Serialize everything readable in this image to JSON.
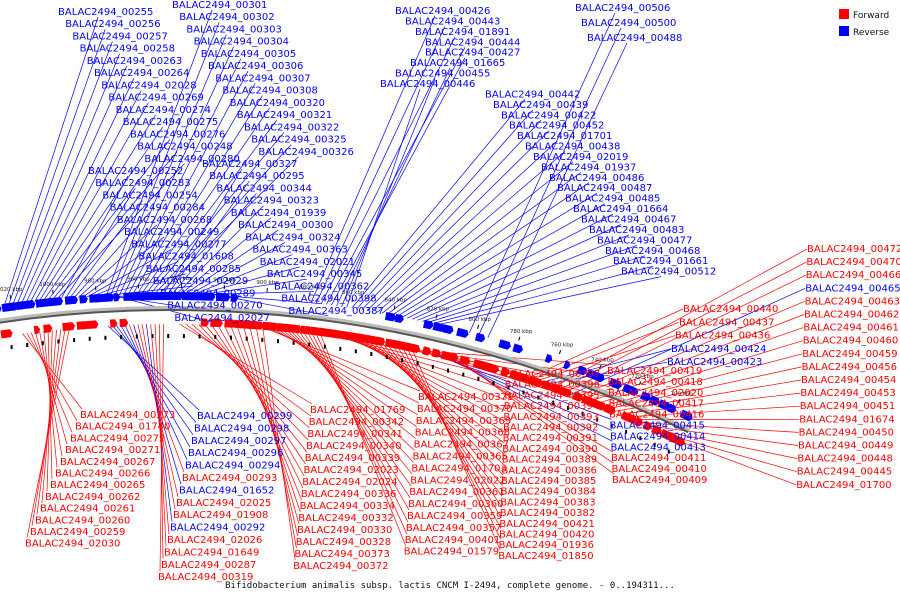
{
  "caption": "Bifidobacterium animalis subsp. lactis CNCM I-2494, complete genome. - 0..194311...",
  "legend": {
    "forward": "Forward",
    "reverse": "Reverse",
    "forward_color": "#ff0000",
    "reverse_color": "#0000ff"
  },
  "ticks": [
    "1020 kbp",
    "1000 kbp",
    "980 kbp",
    "960 kbp",
    "940 kbp",
    "920 kbp",
    "900 kbp",
    "880 kbp",
    "860 kbp",
    "840 kbp",
    "820 kbp",
    "800 kbp",
    "780 kbp",
    "760 kbp",
    "740 kbp",
    "720 kbp",
    "700 kbp"
  ],
  "top_labels": [
    {
      "t": "BALAC2494_00255",
      "c": "b"
    },
    {
      "t": "BALAC2494_00256",
      "c": "b"
    },
    {
      "t": "BALAC2494_00257",
      "c": "b"
    },
    {
      "t": "BALAC2494_00258",
      "c": "b"
    },
    {
      "t": "BALAC2494_00263",
      "c": "b"
    },
    {
      "t": "BALAC2494_00264",
      "c": "b"
    },
    {
      "t": "BALAC2494_02028",
      "c": "b"
    },
    {
      "t": "BALAC2494_00269",
      "c": "b"
    },
    {
      "t": "BALAC2494_00274",
      "c": "b"
    },
    {
      "t": "BALAC2494_00275",
      "c": "b"
    },
    {
      "t": "BALAC2494_00276",
      "c": "b"
    },
    {
      "t": "BALAC2494_00248",
      "c": "b"
    },
    {
      "t": "BALAC2494_00280",
      "c": "b"
    },
    {
      "t": "BALAC2494_00252",
      "c": "b"
    },
    {
      "t": "BALAC2494_00283",
      "c": "b"
    },
    {
      "t": "BALAC2494_00254",
      "c": "b"
    },
    {
      "t": "BALAC2494_00284",
      "c": "b"
    },
    {
      "t": "BALAC2494_00268",
      "c": "b"
    },
    {
      "t": "BALAC2494_00249",
      "c": "b"
    },
    {
      "t": "BALAC2494_00277",
      "c": "b"
    },
    {
      "t": "BALAC2494_01608",
      "c": "b"
    },
    {
      "t": "BALAC2494_00285",
      "c": "b"
    },
    {
      "t": "BALAC2494_02029",
      "c": "b"
    },
    {
      "t": "BALAC2494_00289",
      "c": "b"
    },
    {
      "t": "BALAC2494_00270",
      "c": "b"
    },
    {
      "t": "BALAC2494_02027",
      "c": "b"
    },
    {
      "t": "BALAC2494_00301",
      "c": "b"
    },
    {
      "t": "BALAC2494_00302",
      "c": "b"
    },
    {
      "t": "BALAC2494_00303",
      "c": "b"
    },
    {
      "t": "BALAC2494_00304",
      "c": "b"
    },
    {
      "t": "BALAC2494_00305",
      "c": "b"
    },
    {
      "t": "BALAC2494_00306",
      "c": "b"
    },
    {
      "t": "BALAC2494_00307",
      "c": "b"
    },
    {
      "t": "BALAC2494_00308",
      "c": "b"
    },
    {
      "t": "BALAC2494_00320",
      "c": "b"
    },
    {
      "t": "BALAC2494_00321",
      "c": "b"
    },
    {
      "t": "BALAC2494_00322",
      "c": "b"
    },
    {
      "t": "BALAC2494_00325",
      "c": "b"
    },
    {
      "t": "BALAC2494_00326",
      "c": "b"
    },
    {
      "t": "BALAC2494_00327",
      "c": "b"
    },
    {
      "t": "BALAC2494_00295",
      "c": "b"
    },
    {
      "t": "BALAC2494_00344",
      "c": "b"
    },
    {
      "t": "BALAC2494_00323",
      "c": "b"
    },
    {
      "t": "BALAC2494_01939",
      "c": "b"
    },
    {
      "t": "BALAC2494_00300",
      "c": "b"
    },
    {
      "t": "BALAC2494_00324",
      "c": "b"
    },
    {
      "t": "BALAC2494_00363",
      "c": "b"
    },
    {
      "t": "BALAC2494_02021",
      "c": "b"
    },
    {
      "t": "BALAC2494_00345",
      "c": "b"
    },
    {
      "t": "BALAC2494_00362",
      "c": "b"
    },
    {
      "t": "BALAC2494_00398",
      "c": "b"
    },
    {
      "t": "BALAC2494_00387",
      "c": "b"
    },
    {
      "t": "BALAC2494_00426",
      "c": "b"
    },
    {
      "t": "BALAC2494_00443",
      "c": "b"
    },
    {
      "t": "BALAC2494_01891",
      "c": "b"
    },
    {
      "t": "BALAC2494_00444",
      "c": "b"
    },
    {
      "t": "BALAC2494_00427",
      "c": "b"
    },
    {
      "t": "BALAC2494_01665",
      "c": "b"
    },
    {
      "t": "BALAC2494_00455",
      "c": "b"
    },
    {
      "t": "BALAC2494_00446",
      "c": "b"
    },
    {
      "t": "BALAC2494_00442",
      "c": "b"
    },
    {
      "t": "BALAC2494_00439",
      "c": "b"
    },
    {
      "t": "BALAC2494_00422",
      "c": "b"
    },
    {
      "t": "BALAC2494_00452",
      "c": "b"
    },
    {
      "t": "BALAC2494_01701",
      "c": "b"
    },
    {
      "t": "BALAC2494_00438",
      "c": "b"
    },
    {
      "t": "BALAC2494_02019",
      "c": "b"
    },
    {
      "t": "BALAC2494_01937",
      "c": "b"
    },
    {
      "t": "BALAC2494_00486",
      "c": "b"
    },
    {
      "t": "BALAC2494_00487",
      "c": "b"
    },
    {
      "t": "BALAC2494_00485",
      "c": "b"
    },
    {
      "t": "BALAC2494_01664",
      "c": "b"
    },
    {
      "t": "BALAC2494_00467",
      "c": "b"
    },
    {
      "t": "BALAC2494_00483",
      "c": "b"
    },
    {
      "t": "BALAC2494_00477",
      "c": "b"
    },
    {
      "t": "BALAC2494_00468",
      "c": "b"
    },
    {
      "t": "BALAC2494_01661",
      "c": "b"
    },
    {
      "t": "BALAC2494_00512",
      "c": "b"
    },
    {
      "t": "BALAC2494_00506",
      "c": "b"
    },
    {
      "t": "BALAC2494_00500",
      "c": "b"
    },
    {
      "t": "BALAC2494_00488",
      "c": "b"
    }
  ],
  "right_labels": [
    {
      "t": "BALAC2494_00472",
      "c": "r"
    },
    {
      "t": "BALAC2494_00470",
      "c": "r"
    },
    {
      "t": "BALAC2494_00466",
      "c": "r"
    },
    {
      "t": "BALAC2494_00465",
      "c": "b"
    },
    {
      "t": "BALAC2494_00463",
      "c": "r"
    },
    {
      "t": "BALAC2494_00462",
      "c": "r"
    },
    {
      "t": "BALAC2494_00461",
      "c": "r"
    },
    {
      "t": "BALAC2494_00460",
      "c": "r"
    },
    {
      "t": "BALAC2494_00459",
      "c": "r"
    },
    {
      "t": "BALAC2494_00456",
      "c": "r"
    },
    {
      "t": "BALAC2494_00454",
      "c": "r"
    },
    {
      "t": "BALAC2494_00453",
      "c": "r"
    },
    {
      "t": "BALAC2494_00451",
      "c": "r"
    },
    {
      "t": "BALAC2494_01674",
      "c": "r"
    },
    {
      "t": "BALAC2494_00450",
      "c": "r"
    },
    {
      "t": "BALAC2494_00449",
      "c": "r"
    },
    {
      "t": "BALAC2494_00448",
      "c": "r"
    },
    {
      "t": "BALAC2494_00445",
      "c": "r"
    },
    {
      "t": "BALAC2494_01700",
      "c": "r"
    },
    {
      "t": "BALAC2494_00440",
      "c": "r"
    },
    {
      "t": "BALAC2494_00437",
      "c": "r"
    },
    {
      "t": "BALAC2494_00436",
      "c": "r"
    },
    {
      "t": "BALAC2494_00424",
      "c": "b"
    },
    {
      "t": "BALAC2494_00423",
      "c": "b"
    }
  ],
  "bottom_labels": [
    {
      "t": "BALAC2494_00273",
      "c": "r"
    },
    {
      "t": "BALAC2494_01740",
      "c": "r"
    },
    {
      "t": "BALAC2494_00272",
      "c": "r"
    },
    {
      "t": "BALAC2494_00271",
      "c": "r"
    },
    {
      "t": "BALAC2494_00267",
      "c": "r"
    },
    {
      "t": "BALAC2494_00266",
      "c": "r"
    },
    {
      "t": "BALAC2494_00265",
      "c": "r"
    },
    {
      "t": "BALAC2494_00262",
      "c": "r"
    },
    {
      "t": "BALAC2494_00261",
      "c": "r"
    },
    {
      "t": "BALAC2494_00260",
      "c": "r"
    },
    {
      "t": "BALAC2494_00259",
      "c": "r"
    },
    {
      "t": "BALAC2494_02030",
      "c": "r"
    },
    {
      "t": "BALAC2494_00299",
      "c": "b"
    },
    {
      "t": "BALAC2494_00298",
      "c": "b"
    },
    {
      "t": "BALAC2494_00297",
      "c": "b"
    },
    {
      "t": "BALAC2494_00296",
      "c": "b"
    },
    {
      "t": "BALAC2494_00294",
      "c": "b"
    },
    {
      "t": "BALAC2494_00293",
      "c": "r"
    },
    {
      "t": "BALAC2494_01652",
      "c": "b"
    },
    {
      "t": "BALAC2494_02025",
      "c": "r"
    },
    {
      "t": "BALAC2494_01908",
      "c": "r"
    },
    {
      "t": "BALAC2494_00292",
      "c": "b"
    },
    {
      "t": "BALAC2494_02026",
      "c": "r"
    },
    {
      "t": "BALAC2494_01649",
      "c": "r"
    },
    {
      "t": "BALAC2494_00287",
      "c": "r"
    },
    {
      "t": "BALAC2494_00319",
      "c": "r"
    },
    {
      "t": "BALAC2494_01769",
      "c": "r"
    },
    {
      "t": "BALAC2494_00342",
      "c": "r"
    },
    {
      "t": "BALAC2494_00341",
      "c": "r"
    },
    {
      "t": "BALAC2494_00340",
      "c": "r"
    },
    {
      "t": "BALAC2494_00339",
      "c": "r"
    },
    {
      "t": "BALAC2494_02023",
      "c": "r"
    },
    {
      "t": "BALAC2494_02024",
      "c": "r"
    },
    {
      "t": "BALAC2494_00336",
      "c": "r"
    },
    {
      "t": "BALAC2494_00334",
      "c": "r"
    },
    {
      "t": "BALAC2494_00332",
      "c": "r"
    },
    {
      "t": "BALAC2494_00330",
      "c": "r"
    },
    {
      "t": "BALAC2494_00328",
      "c": "r"
    },
    {
      "t": "BALAC2494_00373",
      "c": "r"
    },
    {
      "t": "BALAC2494_00372",
      "c": "r"
    },
    {
      "t": "BALAC2494_00371",
      "c": "r"
    },
    {
      "t": "BALAC2494_00370",
      "c": "r"
    },
    {
      "t": "BALAC2494_00369",
      "c": "r"
    },
    {
      "t": "BALAC2494_00368",
      "c": "r"
    },
    {
      "t": "BALAC2494_00367",
      "c": "r"
    },
    {
      "t": "BALAC2494_00365",
      "c": "r"
    },
    {
      "t": "BALAC2494_01703",
      "c": "r"
    },
    {
      "t": "BALAC2494_02022",
      "c": "r"
    },
    {
      "t": "BALAC2494_00361",
      "c": "r"
    },
    {
      "t": "BALAC2494_00360",
      "c": "r"
    },
    {
      "t": "BALAC2494_00359",
      "c": "r"
    },
    {
      "t": "BALAC2494_00357",
      "c": "r"
    },
    {
      "t": "BALAC2494_00401",
      "c": "r"
    },
    {
      "t": "BALAC2494_01579",
      "c": "r"
    },
    {
      "t": "BALAC2494_00397",
      "c": "r"
    },
    {
      "t": "BALAC2494_00396",
      "c": "r"
    },
    {
      "t": "BALAC2494_00395",
      "c": "r"
    },
    {
      "t": "BALAC2494_00394",
      "c": "r"
    },
    {
      "t": "BALAC2494_00393",
      "c": "r"
    },
    {
      "t": "BALAC2494_00392",
      "c": "r"
    },
    {
      "t": "BALAC2494_00391",
      "c": "r"
    },
    {
      "t": "BALAC2494_00390",
      "c": "r"
    },
    {
      "t": "BALAC2494_00389",
      "c": "r"
    },
    {
      "t": "BALAC2494_00386",
      "c": "r"
    },
    {
      "t": "BALAC2494_00385",
      "c": "r"
    },
    {
      "t": "BALAC2494_00384",
      "c": "r"
    },
    {
      "t": "BALAC2494_00383",
      "c": "r"
    },
    {
      "t": "BALAC2494_00382",
      "c": "r"
    },
    {
      "t": "BALAC2494_00421",
      "c": "r"
    },
    {
      "t": "BALAC2494_00420",
      "c": "r"
    },
    {
      "t": "BALAC2494_01936",
      "c": "r"
    },
    {
      "t": "BALAC2494_01850",
      "c": "r"
    },
    {
      "t": "BALAC2494_00419",
      "c": "r"
    },
    {
      "t": "BALAC2494_00418",
      "c": "r"
    },
    {
      "t": "BALAC2494_02020",
      "c": "r"
    },
    {
      "t": "BALAC2494_00417",
      "c": "r"
    },
    {
      "t": "BALAC2494_00416",
      "c": "r"
    },
    {
      "t": "BALAC2494_00415",
      "c": "b"
    },
    {
      "t": "BALAC2494_00414",
      "c": "b"
    },
    {
      "t": "BALAC2494_00413",
      "c": "b"
    },
    {
      "t": "BALAC2494_00411",
      "c": "r"
    },
    {
      "t": "BALAC2494_00410",
      "c": "r"
    },
    {
      "t": "BALAC2494_00409",
      "c": "r"
    }
  ]
}
